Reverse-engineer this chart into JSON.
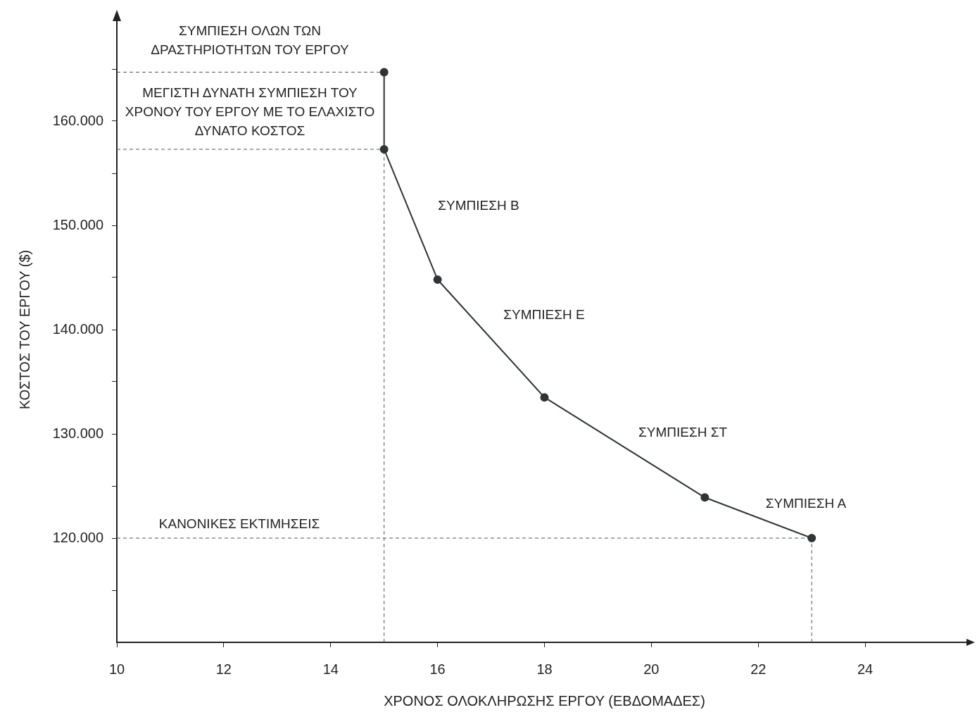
{
  "chart_data": {
    "type": "line",
    "xlabel": "ΧΡΟΝΟΣ ΟΛΟΚΛΗΡΩΣΗΣ ΕΡΓΟΥ (ΕΒΔΟΜΑΔΕΣ)",
    "ylabel": "ΚΟΣΤΟΣ ΤΟΥ ΕΡΓΟΥ ($)",
    "series": [
      {
        "x": [
          15,
          15,
          16,
          18,
          21,
          23
        ],
        "values": [
          164700,
          157300,
          144800,
          133500,
          123900,
          120000
        ],
        "color": "#2f3437",
        "marker": "circle",
        "line_style": "solid"
      },
      {
        "x": [
          10,
          15
        ],
        "values": [
          164700,
          164700
        ],
        "color": "#555555",
        "marker": "none",
        "line_style": "dashed"
      },
      {
        "x": [
          10,
          15
        ],
        "values": [
          157300,
          157300
        ],
        "color": "#555555",
        "marker": "none",
        "line_style": "dashed"
      },
      {
        "x": [
          10,
          23
        ],
        "values": [
          120000,
          120000
        ],
        "color": "#555555",
        "marker": "none",
        "line_style": "dashed"
      },
      {
        "x": [
          15,
          15
        ],
        "values": [
          110000,
          157300
        ],
        "color": "#555555",
        "marker": "none",
        "line_style": "dashed"
      },
      {
        "x": [
          23,
          23
        ],
        "values": [
          110000,
          120000
        ],
        "color": "#555555",
        "marker": "none",
        "line_style": "dashed"
      }
    ],
    "xlim": [
      10,
      26
    ],
    "xticks": [
      10,
      12,
      14,
      16,
      18,
      20,
      22,
      24
    ],
    "ylim": [
      110000,
      170000
    ],
    "yticks": [
      {
        "value": 115000,
        "label": null
      },
      {
        "value": 120000,
        "label": "120.000"
      },
      {
        "value": 125000,
        "label": null
      },
      {
        "value": 130000,
        "label": "130.000"
      },
      {
        "value": 135000,
        "label": null
      },
      {
        "value": 140000,
        "label": "140.000"
      },
      {
        "value": 145000,
        "label": null
      },
      {
        "value": 150000,
        "label": "150.000"
      },
      {
        "value": 155000,
        "label": null
      },
      {
        "value": 160000,
        "label": "160.000"
      },
      {
        "value": 165000,
        "label": null
      }
    ],
    "annotations": [
      "ΣΥΜΠΙΕΣΗ ΟΛΩΝ ΤΩΝ ΔΡΑΣΤΗΡΙΟΤΗΤΩΝ ΤΟΥ ΕΡΓΟΥ",
      "ΜΕΓΙΣΤΗ ΔΥΝΑΤΗ ΣΥΜΠΙΕΣΗ ΤΟΥ ΧΡΟΝΟΥ ΤΟΥ ΕΡΓΟΥ ΜΕ ΤΟ ΕΛΑΧΙΣΤΟ ΔΥΝΑΤΟ ΚΟΣΤΟΣ",
      "ΣΥΜΠΙΕΣΗ Β",
      "ΣΥΜΠΙΕΣΗ Ε",
      "ΣΥΜΠΙΕΣΗ ΣΤ",
      "ΣΥΜΠΙΕΣΗ Α",
      "ΚΑΝΟΝΙΚΕΣ ΕΚΤΙΜΗΣΕΙΣ"
    ],
    "grid": false,
    "legend": false
  }
}
